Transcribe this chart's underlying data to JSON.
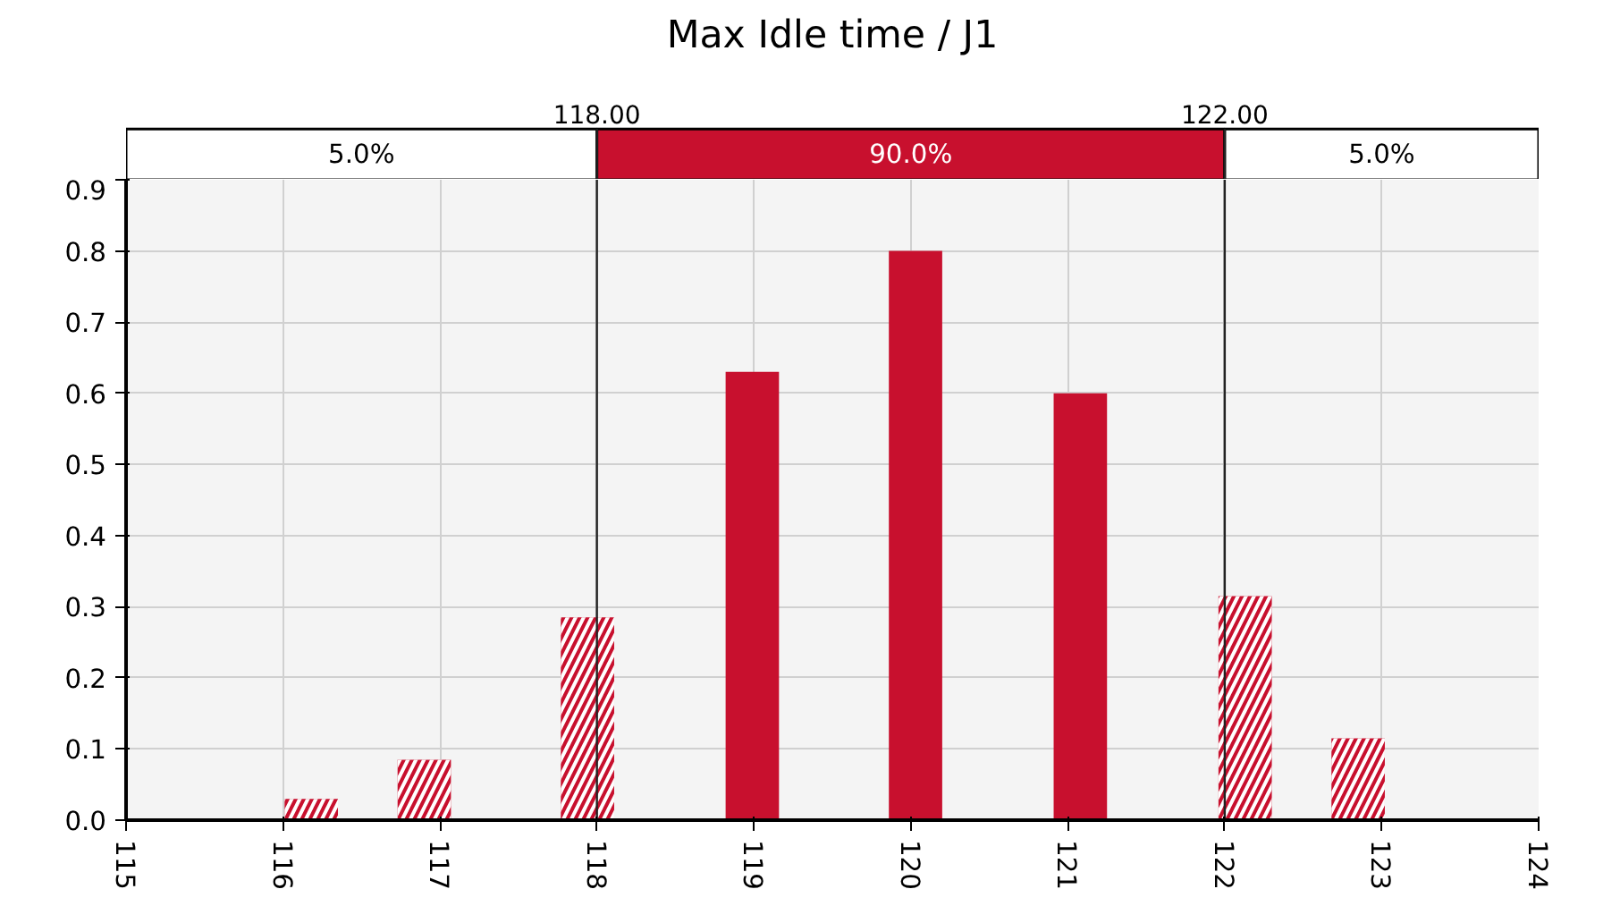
{
  "chart_data": {
    "type": "bar",
    "title": "Max Idle time / J1",
    "x": [
      116.18,
      116.9,
      117.94,
      118.99,
      120.03,
      121.08,
      122.13,
      122.85
    ],
    "values": [
      0.03,
      0.085,
      0.285,
      0.63,
      0.8,
      0.6,
      0.315,
      0.115
    ],
    "color": "#c8102e",
    "xlim": [
      115,
      124
    ],
    "xticks": [
      115,
      116,
      117,
      118,
      119,
      120,
      121,
      122,
      123,
      124
    ],
    "ylim": [
      0,
      0.9
    ],
    "yticks": [
      {
        "value": 0,
        "label": "0.0"
      },
      0.1,
      0.2,
      0.3,
      0.4,
      0.5,
      0.6,
      0.7,
      0.8,
      0.9
    ],
    "grid": true,
    "ref_lines": [
      {
        "axis": "x",
        "value": 118,
        "label": "118.00",
        "color": "#222222"
      },
      {
        "axis": "x",
        "value": 122,
        "label": "122.00",
        "color": "#222222"
      }
    ],
    "annotations": [
      "5.0%",
      "90.0%",
      "5.0%"
    ]
  }
}
